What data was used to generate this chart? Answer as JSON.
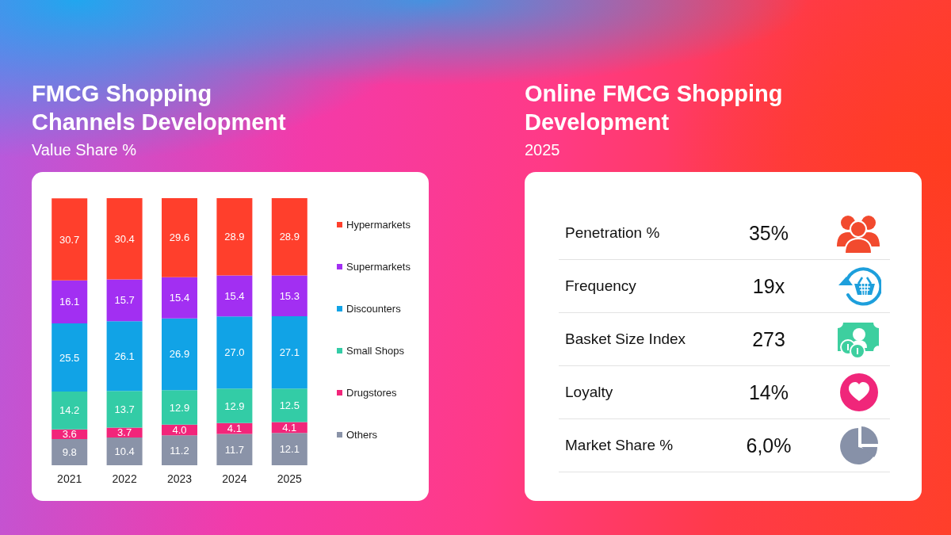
{
  "chart_data": [
    {
      "type": "bar",
      "title": "FMCG Shopping Channels Development",
      "subtitle": "Value Share %",
      "categories": [
        "2021",
        "2022",
        "2023",
        "2024",
        "2025"
      ],
      "stacked": true,
      "legend": "right",
      "series": [
        {
          "name": "Others",
          "color": "#8a93a8",
          "values": [
            9.8,
            10.4,
            11.2,
            11.7,
            12.1
          ],
          "value_labels": [
            "9.8",
            "10.4",
            "11.2",
            "11.7",
            "12.1"
          ]
        },
        {
          "name": "Drugstores",
          "color": "#f2257a",
          "values": [
            3.6,
            3.7,
            4.0,
            4.1,
            4.1
          ],
          "value_labels": [
            "3.6",
            "3.7",
            "4.0",
            "4.1",
            "4.1"
          ]
        },
        {
          "name": "Small Shops",
          "color": "#33cca6",
          "values": [
            14.2,
            13.7,
            12.9,
            12.9,
            12.5
          ],
          "value_labels": [
            "14.2",
            "13.7",
            "12.9",
            "12.9",
            "12.5"
          ]
        },
        {
          "name": "Discounters",
          "color": "#11a3e6",
          "values": [
            25.5,
            26.1,
            26.9,
            27.0,
            27.1
          ],
          "value_labels": [
            "25.5",
            "26.1",
            "26.9",
            "27.0",
            "27.1"
          ]
        },
        {
          "name": "Supermarkets",
          "color": "#a22ff2",
          "values": [
            16.1,
            15.7,
            15.4,
            15.4,
            15.3
          ],
          "value_labels": [
            "16.1",
            "15.7",
            "15.4",
            "15.4",
            "15.3"
          ]
        },
        {
          "name": "Hypermarkets",
          "color": "#ff3f2c",
          "values": [
            30.7,
            30.4,
            29.6,
            28.9,
            28.9
          ],
          "value_labels": [
            "30.7",
            "30.4",
            "29.6",
            "28.9",
            "28.9"
          ]
        }
      ]
    },
    {
      "type": "other",
      "title": "Online FMCG Shopping Development",
      "subtitle": "2025",
      "annotations": [
        "Penetration %",
        "35%",
        "Frequency",
        "19x",
        "Basket Size Index",
        "273",
        "Loyalty",
        "14%",
        "Market Share %",
        "6,0%"
      ]
    }
  ]
}
